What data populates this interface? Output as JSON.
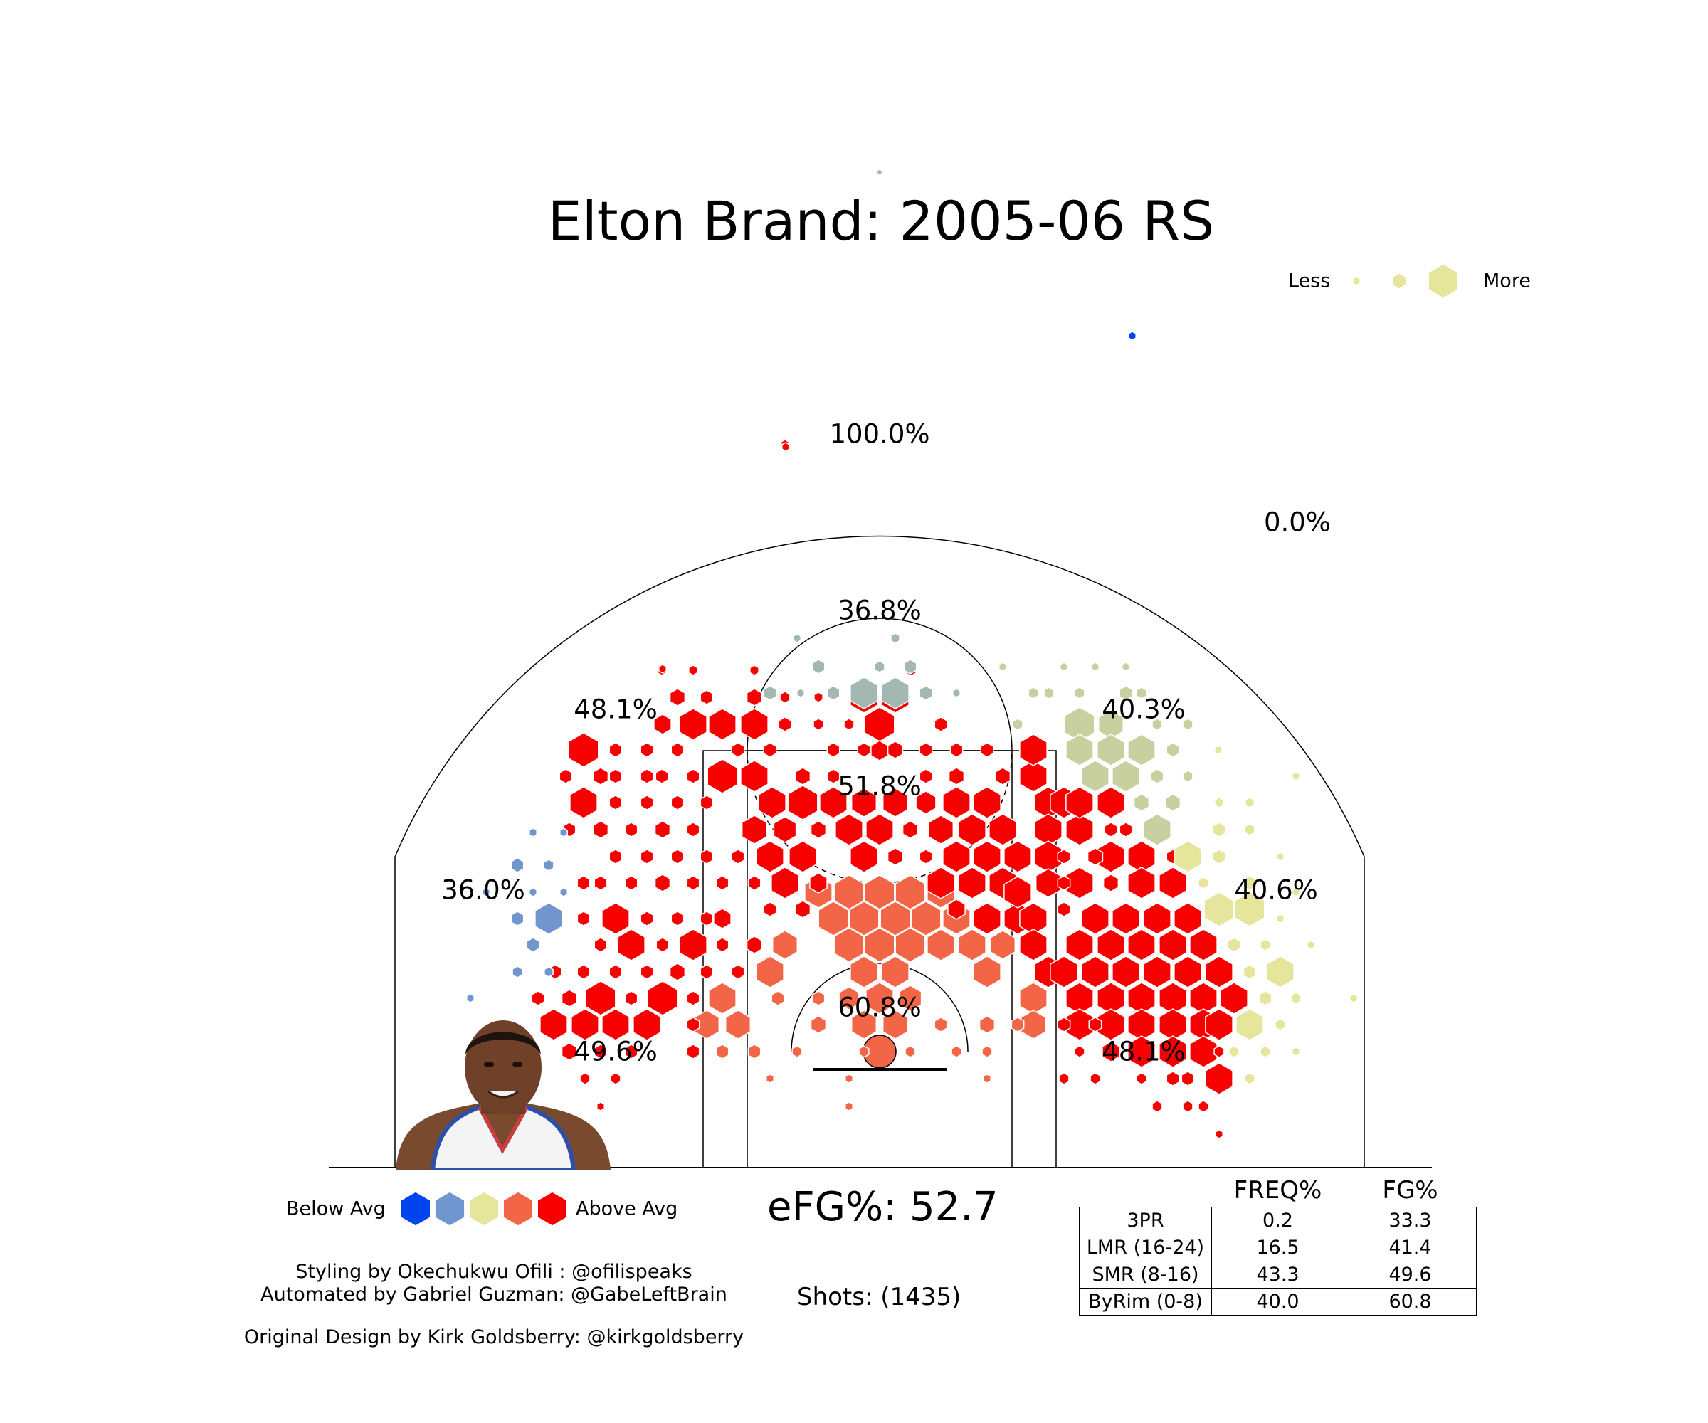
{
  "chart_data": {
    "type": "hexbin-shot-chart",
    "title": "Elton Brand: 2005-06 RS",
    "zones": [
      {
        "name": "Restricted area",
        "fg_pct": "60.8%"
      },
      {
        "name": "Paint",
        "fg_pct": "51.8%"
      },
      {
        "name": "Top of key",
        "fg_pct": "36.8%"
      },
      {
        "name": "Left elbow",
        "fg_pct": "48.1%"
      },
      {
        "name": "Right elbow",
        "fg_pct": "40.3%"
      },
      {
        "name": "Left wing mid-range",
        "fg_pct": "36.0%"
      },
      {
        "name": "Right wing mid-range",
        "fg_pct": "40.6%"
      },
      {
        "name": "Left baseline",
        "fg_pct": "49.6%"
      },
      {
        "name": "Right baseline",
        "fg_pct": "48.1%"
      },
      {
        "name": "Backcourt left",
        "fg_pct": "100.0%"
      },
      {
        "name": "Backcourt right",
        "fg_pct": "0.0%"
      }
    ],
    "size_legend": {
      "less": "Less",
      "more": "More"
    },
    "color_legend": {
      "below": "Below Avg",
      "above": "Above Avg",
      "colors": [
        "#0044ee",
        "#7196cf",
        "#e5e59c",
        "#f26647",
        "#f70000"
      ]
    },
    "efg": "eFG%: 52.7",
    "shots": "Shots: (1435)",
    "table": {
      "headers": [
        "",
        "FREQ%",
        "FG%"
      ],
      "rows": [
        {
          "label": "3PR",
          "freq": "0.2",
          "fg": "33.3"
        },
        {
          "label": "LMR (16-24)",
          "freq": "16.5",
          "fg": "41.4"
        },
        {
          "label": "SMR (8-16)",
          "freq": "43.3",
          "fg": "49.6"
        },
        {
          "label": "ByRim (0-8)",
          "freq": "40.0",
          "fg": "60.8"
        }
      ]
    }
  },
  "credits": {
    "styling": "Styling by Okechukwu Ofili : @ofilispeaks",
    "automated": "Automated by Gabriel Guzman: @GabeLeftBrain",
    "original": "Original Design by Kirk Goldsberry: @kirkgoldsberry"
  },
  "colors": {
    "above": "#f70000",
    "orange": "#f26647",
    "neutral": "#e5e59c",
    "olive": "#c9d0a0",
    "grey": "#a3b8b1",
    "blue_light": "#7196cf",
    "below": "#0044ee"
  }
}
